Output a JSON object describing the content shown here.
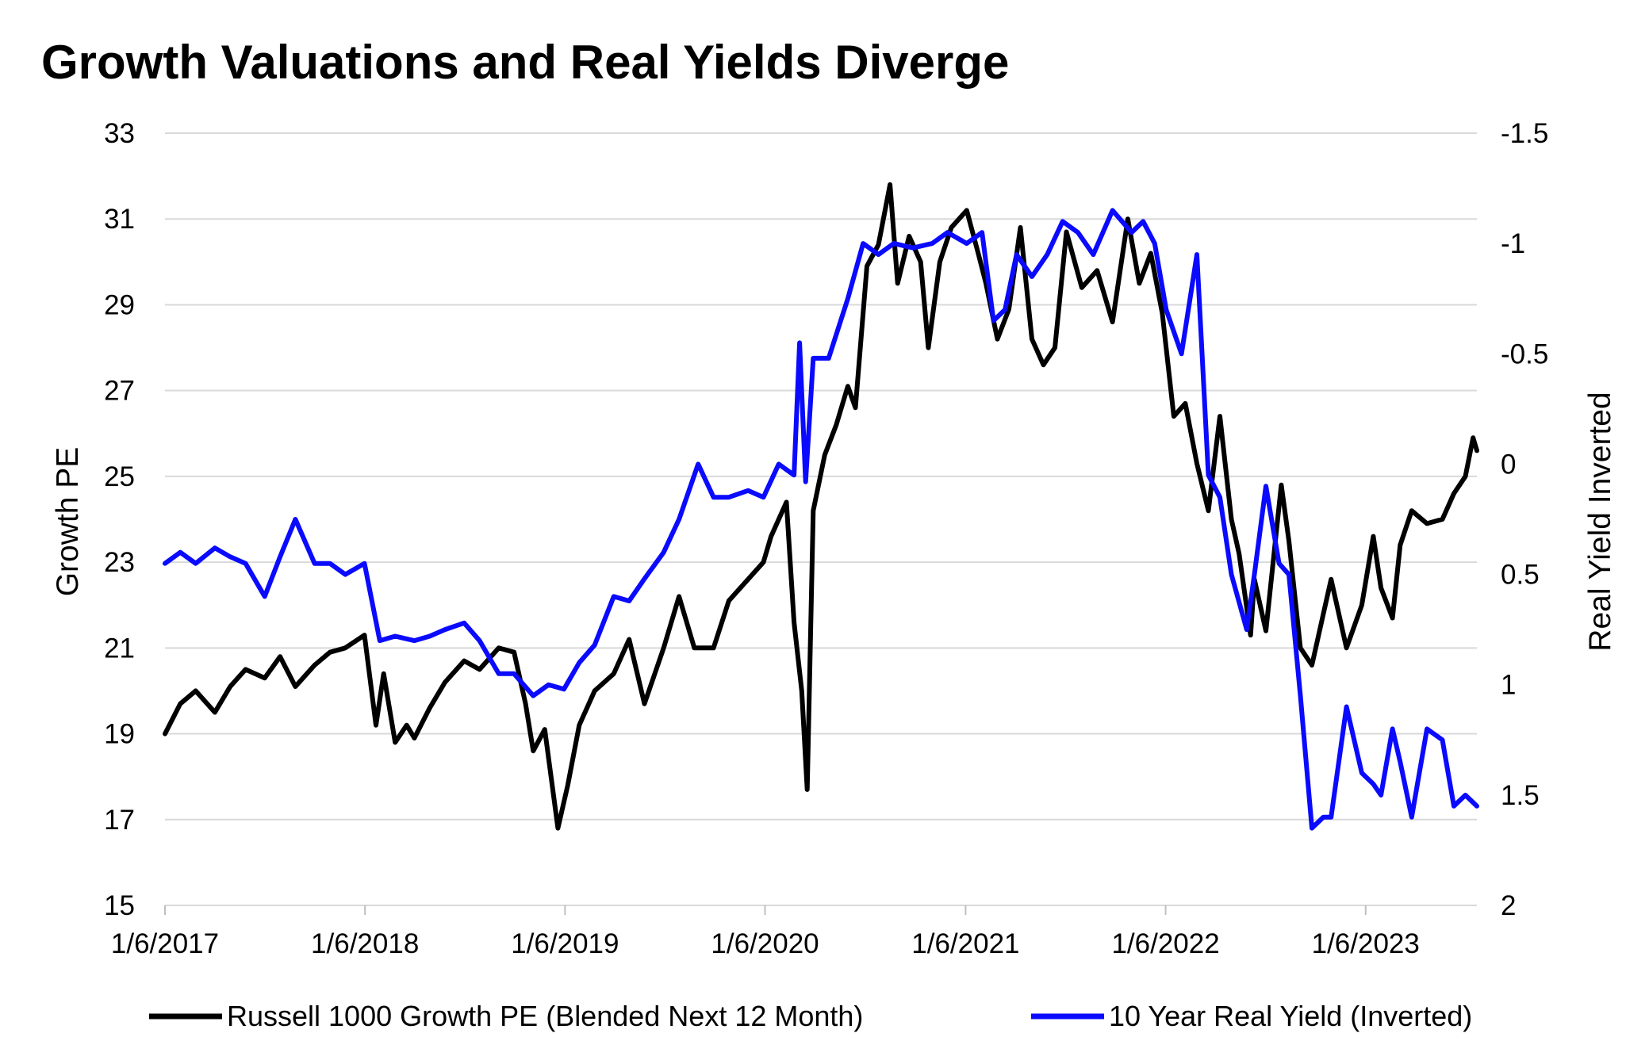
{
  "chart_data": {
    "type": "line",
    "title": "Growth Valuations and Real Yields Diverge",
    "xlabel": "",
    "ylabel": "Growth PE",
    "y2label": "Real Yield Inverted",
    "x_ticks": [
      "1/6/2017",
      "1/6/2018",
      "1/6/2019",
      "1/6/2020",
      "1/6/2021",
      "1/6/2022",
      "1/6/2023"
    ],
    "x_range": [
      "2017-01-06",
      "2023-07-28"
    ],
    "ylim": [
      15,
      33
    ],
    "y_ticks": [
      15,
      17,
      19,
      21,
      23,
      25,
      27,
      29,
      31,
      33
    ],
    "y2lim": [
      -1.5,
      2
    ],
    "y2_inverted": true,
    "y2_ticks": [
      -1.5,
      -1,
      -0.5,
      0,
      0.5,
      1,
      1.5,
      2
    ],
    "y2_tick_labels": [
      "-1.5",
      "-1",
      "-0.5",
      "0",
      "0.5",
      "1",
      "1.5",
      "2"
    ],
    "grid": "horizontal",
    "legend_position": "bottom",
    "series": [
      {
        "name": "Russell 1000 Growth PE (Blended Next 12 Month)",
        "axis": "left",
        "color": "#000000",
        "x": [
          "2017-01-06",
          "2017-02-03",
          "2017-03-03",
          "2017-04-07",
          "2017-05-05",
          "2017-06-02",
          "2017-07-07",
          "2017-08-04",
          "2017-09-01",
          "2017-10-06",
          "2017-11-03",
          "2017-12-01",
          "2018-01-05",
          "2018-01-26",
          "2018-02-09",
          "2018-03-02",
          "2018-03-23",
          "2018-04-06",
          "2018-05-04",
          "2018-06-01",
          "2018-07-06",
          "2018-08-03",
          "2018-09-07",
          "2018-10-05",
          "2018-10-26",
          "2018-11-09",
          "2018-11-30",
          "2018-12-24",
          "2019-01-11",
          "2019-02-01",
          "2019-03-01",
          "2019-04-05",
          "2019-05-03",
          "2019-05-31",
          "2019-07-05",
          "2019-08-02",
          "2019-08-30",
          "2019-10-04",
          "2019-11-01",
          "2019-12-06",
          "2020-01-03",
          "2020-01-17",
          "2020-02-14",
          "2020-02-28",
          "2020-03-13",
          "2020-03-23",
          "2020-04-03",
          "2020-04-24",
          "2020-05-15",
          "2020-06-05",
          "2020-06-19",
          "2020-07-10",
          "2020-07-31",
          "2020-08-21",
          "2020-09-04",
          "2020-09-25",
          "2020-10-16",
          "2020-10-30",
          "2020-11-20",
          "2020-12-11",
          "2021-01-08",
          "2021-01-29",
          "2021-02-12",
          "2021-03-05",
          "2021-03-26",
          "2021-04-16",
          "2021-05-07",
          "2021-05-28",
          "2021-06-18",
          "2021-07-09",
          "2021-08-06",
          "2021-09-03",
          "2021-10-01",
          "2021-10-29",
          "2021-11-19",
          "2021-12-10",
          "2021-12-31",
          "2022-01-21",
          "2022-02-11",
          "2022-03-04",
          "2022-03-25",
          "2022-04-15",
          "2022-05-06",
          "2022-05-20",
          "2022-06-10",
          "2022-06-17",
          "2022-07-08",
          "2022-08-05",
          "2022-08-19",
          "2022-09-09",
          "2022-09-30",
          "2022-10-21",
          "2022-11-04",
          "2022-12-02",
          "2022-12-30",
          "2023-01-20",
          "2023-02-03",
          "2023-02-24",
          "2023-03-10",
          "2023-03-31",
          "2023-04-28",
          "2023-05-26",
          "2023-06-16",
          "2023-07-07",
          "2023-07-21",
          "2023-07-28"
        ],
        "values": [
          19.0,
          19.7,
          20.0,
          19.5,
          20.1,
          20.5,
          20.3,
          20.8,
          20.1,
          20.6,
          20.9,
          21.0,
          21.3,
          19.2,
          20.4,
          18.8,
          19.2,
          18.9,
          19.6,
          20.2,
          20.7,
          20.5,
          21.0,
          20.9,
          19.7,
          18.6,
          19.1,
          16.8,
          17.8,
          19.2,
          20.0,
          20.4,
          21.2,
          19.7,
          21.0,
          22.2,
          21.0,
          21.0,
          22.1,
          22.6,
          23.0,
          23.6,
          24.4,
          21.6,
          20.0,
          17.7,
          24.2,
          25.5,
          26.2,
          27.1,
          26.6,
          29.9,
          30.4,
          31.8,
          29.5,
          30.6,
          30.0,
          28.0,
          30.0,
          30.8,
          31.2,
          30.2,
          29.5,
          28.2,
          28.9,
          30.8,
          28.2,
          27.6,
          28.0,
          30.7,
          29.4,
          29.8,
          28.6,
          31.0,
          29.5,
          30.2,
          28.8,
          26.4,
          26.7,
          25.3,
          24.2,
          26.4,
          24.0,
          23.2,
          21.3,
          22.6,
          21.4,
          24.8,
          23.5,
          21.0,
          20.6,
          21.8,
          22.6,
          21.0,
          22.0,
          23.6,
          22.4,
          21.7,
          23.4,
          24.2,
          23.9,
          24.0,
          24.6,
          25.0,
          25.9,
          25.6
        ]
      },
      {
        "name": "10 Year Real Yield (Inverted)",
        "axis": "right",
        "color": "#0a0aff",
        "x": [
          "2017-01-06",
          "2017-02-03",
          "2017-03-03",
          "2017-04-07",
          "2017-05-05",
          "2017-06-02",
          "2017-07-07",
          "2017-08-04",
          "2017-09-01",
          "2017-10-06",
          "2017-11-03",
          "2017-12-01",
          "2018-01-05",
          "2018-02-02",
          "2018-03-02",
          "2018-04-06",
          "2018-05-04",
          "2018-06-01",
          "2018-07-06",
          "2018-08-03",
          "2018-09-07",
          "2018-10-05",
          "2018-11-09",
          "2018-12-07",
          "2019-01-04",
          "2019-02-01",
          "2019-03-01",
          "2019-04-05",
          "2019-05-03",
          "2019-05-31",
          "2019-07-05",
          "2019-08-02",
          "2019-09-06",
          "2019-10-04",
          "2019-11-01",
          "2019-12-06",
          "2020-01-03",
          "2020-01-31",
          "2020-02-28",
          "2020-03-09",
          "2020-03-20",
          "2020-04-03",
          "2020-05-01",
          "2020-06-05",
          "2020-07-03",
          "2020-07-31",
          "2020-08-28",
          "2020-10-02",
          "2020-11-06",
          "2020-12-04",
          "2021-01-08",
          "2021-02-05",
          "2021-02-26",
          "2021-03-19",
          "2021-04-09",
          "2021-05-07",
          "2021-06-04",
          "2021-07-02",
          "2021-07-30",
          "2021-08-27",
          "2021-10-01",
          "2021-11-05",
          "2021-11-26",
          "2021-12-17",
          "2022-01-07",
          "2022-02-04",
          "2022-03-04",
          "2022-03-25",
          "2022-04-15",
          "2022-05-06",
          "2022-06-03",
          "2022-06-17",
          "2022-07-08",
          "2022-08-01",
          "2022-08-19",
          "2022-09-09",
          "2022-09-30",
          "2022-10-21",
          "2022-11-04",
          "2022-12-02",
          "2022-12-30",
          "2023-01-20",
          "2023-02-03",
          "2023-02-24",
          "2023-03-10",
          "2023-03-31",
          "2023-04-28",
          "2023-05-26",
          "2023-06-16",
          "2023-07-07",
          "2023-07-28"
        ],
        "values": [
          0.45,
          0.4,
          0.45,
          0.38,
          0.42,
          0.45,
          0.6,
          0.42,
          0.25,
          0.45,
          0.45,
          0.5,
          0.45,
          0.8,
          0.78,
          0.8,
          0.78,
          0.75,
          0.72,
          0.8,
          0.95,
          0.95,
          1.05,
          1.0,
          1.02,
          0.9,
          0.82,
          0.6,
          0.62,
          0.52,
          0.4,
          0.25,
          0.0,
          0.15,
          0.15,
          0.12,
          0.15,
          0.0,
          0.05,
          -0.55,
          0.08,
          -0.48,
          -0.48,
          -0.75,
          -1.0,
          -0.95,
          -1.0,
          -0.98,
          -1.0,
          -1.05,
          -1.0,
          -1.05,
          -0.65,
          -0.7,
          -0.95,
          -0.85,
          -0.95,
          -1.1,
          -1.05,
          -0.95,
          -1.15,
          -1.05,
          -1.1,
          -1.0,
          -0.7,
          -0.5,
          -0.95,
          0.05,
          0.15,
          0.5,
          0.75,
          0.5,
          0.1,
          0.45,
          0.5,
          1.05,
          1.65,
          1.6,
          1.6,
          1.1,
          1.4,
          1.45,
          1.5,
          1.2,
          1.35,
          1.6,
          1.2,
          1.25,
          1.55,
          1.5,
          1.55
        ]
      }
    ]
  }
}
